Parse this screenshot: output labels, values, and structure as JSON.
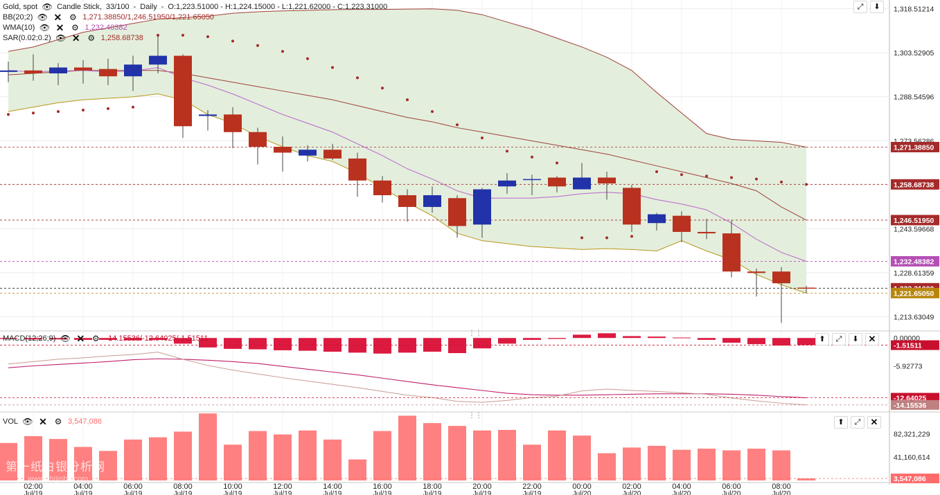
{
  "header": {
    "symbol": "Gold, spot",
    "chart_type": "Candle Stick,",
    "bar_count": "33/100",
    "timeframe": "Daily",
    "ohlc": "O:1,223.51000 - H:1,224.15000 - L:1,221.62000 - C:1,223.31000"
  },
  "indicators": {
    "bb": {
      "name": "BB(20;2)",
      "values": "1,271.38850/1,246.51950/1,221.65050",
      "color": "#a52a2a"
    },
    "wma": {
      "name": "WMA(10)",
      "values": "1,232.48382",
      "color": "#b44fb4"
    },
    "sar": {
      "name": "SAR(0.02;0.2)",
      "values": "1,258.68738",
      "color": "#a52a2a"
    },
    "macd": {
      "name": "MACD(12;26;9)",
      "values": "-14.15536/-12.64025/-1.51511",
      "color": "#b2102f"
    },
    "vol": {
      "name": "VOL",
      "values": "3,547,086",
      "color": "#ff6b6b"
    }
  },
  "chart_data": {
    "type": "candlestick",
    "y_axis_ticks": [
      "1,318.51214",
      "1,303.52905",
      "1,288.54596",
      "1,273.56286",
      "1,258.58",
      "1,243.59668",
      "1,228.61359",
      "1,213.63049"
    ],
    "y_tick_values": [
      1318.51214,
      1303.52905,
      1288.54596,
      1273.56286,
      1258.58,
      1243.59668,
      1228.61359,
      1213.63049
    ],
    "ylim": [
      1209.0,
      1321.5
    ],
    "price_labels": [
      {
        "text": "1,271.38850",
        "value": 1271.3885,
        "color": "#a52a2a"
      },
      {
        "text": "1,258.68738",
        "value": 1258.68738,
        "color": "#a52a2a"
      },
      {
        "text": "1,246.51950",
        "value": 1246.5195,
        "color": "#a52a2a"
      },
      {
        "text": "1,232.48382",
        "value": 1232.48382,
        "color": "#b44fb4"
      },
      {
        "text": "1,223.31000",
        "value": 1223.31,
        "color": "#a52a2a"
      },
      {
        "text": "1,221.65050",
        "value": 1221.6505,
        "color": "#b8860b"
      }
    ],
    "x_time_labels": [
      "02:00",
      "04:00",
      "06:00",
      "08:00",
      "10:00",
      "12:00",
      "14:00",
      "16:00",
      "18:00",
      "20:00",
      "22:00",
      "00:00",
      "02:00",
      "04:00",
      "06:00",
      "08:00"
    ],
    "x_date_labels": [
      "Jul/19",
      "Jul/19",
      "Jul/19",
      "Jul/19",
      "Jul/19",
      "Jul/19",
      "Jul/19",
      "Jul/19",
      "Jul/19",
      "Jul/19",
      "Jul/19",
      "Jul/20",
      "Jul/20",
      "Jul/20",
      "Jul/20",
      "Jul/20"
    ],
    "candles": [
      [
        1297.0,
        1300.5,
        1293.5,
        1297.5
      ],
      [
        1297.5,
        1303.0,
        1294.0,
        1296.5
      ],
      [
        1296.5,
        1300.0,
        1292.5,
        1298.5
      ],
      [
        1298.5,
        1301.0,
        1293.0,
        1297.5
      ],
      [
        1298.0,
        1301.5,
        1292.5,
        1295.5
      ],
      [
        1295.5,
        1302.5,
        1290.5,
        1299.5
      ],
      [
        1299.5,
        1309.5,
        1296.5,
        1302.5
      ],
      [
        1302.5,
        1303.0,
        1274.5,
        1278.5
      ],
      [
        1282.0,
        1284.0,
        1277.0,
        1282.5
      ],
      [
        1282.5,
        1285.0,
        1271.0,
        1276.5
      ],
      [
        1276.5,
        1278.0,
        1265.5,
        1271.5
      ],
      [
        1271.5,
        1275.0,
        1263.0,
        1269.5
      ],
      [
        1268.5,
        1272.0,
        1266.5,
        1270.5
      ],
      [
        1270.5,
        1272.5,
        1267.0,
        1267.5
      ],
      [
        1267.5,
        1269.5,
        1254.5,
        1260.0
      ],
      [
        1260.0,
        1261.5,
        1252.5,
        1255.0
      ],
      [
        1255.0,
        1257.0,
        1246.0,
        1251.0
      ],
      [
        1251.0,
        1258.0,
        1249.0,
        1255.0
      ],
      [
        1254.0,
        1255.0,
        1240.5,
        1244.5
      ],
      [
        1245.0,
        1257.5,
        1240.5,
        1257.0
      ],
      [
        1258.0,
        1262.5,
        1255.5,
        1260.0
      ],
      [
        1260.5,
        1262.0,
        1255.0,
        1260.5
      ],
      [
        1261.0,
        1261.5,
        1256.0,
        1258.0
      ],
      [
        1257.0,
        1266.0,
        1257.0,
        1261.0
      ],
      [
        1261.0,
        1263.0,
        1253.5,
        1259.0
      ],
      [
        1257.5,
        1258.5,
        1242.5,
        1245.0
      ],
      [
        1245.5,
        1249.0,
        1243.0,
        1248.5
      ],
      [
        1248.0,
        1249.5,
        1239.0,
        1242.5
      ],
      [
        1242.5,
        1247.0,
        1240.0,
        1242.0
      ],
      [
        1242.0,
        1246.5,
        1227.0,
        1229.0
      ],
      [
        1229.0,
        1230.0,
        1220.5,
        1228.5
      ],
      [
        1229.0,
        1230.5,
        1211.5,
        1225.0
      ],
      [
        1223.51,
        1224.15,
        1221.62,
        1223.31
      ]
    ],
    "bb_upper": [
      1304.0,
      1305.5,
      1308.0,
      1310.5,
      1312.0,
      1313.5,
      1315.0,
      1315.5,
      1316.0,
      1317.0,
      1317.5,
      1317.8,
      1318.0,
      1318.2,
      1318.3,
      1318.3,
      1318.4,
      1318.5,
      1318.0,
      1316.5,
      1314.0,
      1311.5,
      1308.5,
      1305.5,
      1302.0,
      1297.5,
      1290.0,
      1283.0,
      1276.0,
      1274.0,
      1273.5,
      1273.0,
      1271.3885
    ],
    "bb_mid": [
      1296.0,
      1296.5,
      1297.0,
      1297.5,
      1297.5,
      1297.5,
      1297.5,
      1296.5,
      1295.0,
      1293.5,
      1292.0,
      1290.5,
      1289.0,
      1287.5,
      1285.5,
      1283.5,
      1281.5,
      1280.0,
      1278.0,
      1276.5,
      1275.0,
      1273.5,
      1272.0,
      1270.5,
      1269.0,
      1267.0,
      1265.0,
      1263.0,
      1261.0,
      1259.0,
      1256.5,
      1251.0,
      1246.5195
    ],
    "bb_lower": [
      1283.5,
      1285.0,
      1286.5,
      1287.5,
      1288.0,
      1288.5,
      1289.5,
      1287.5,
      1282.5,
      1279.5,
      1275.0,
      1271.5,
      1268.5,
      1266.5,
      1262.5,
      1257.5,
      1252.5,
      1248.0,
      1242.0,
      1239.5,
      1238.5,
      1237.5,
      1237.0,
      1236.5,
      1236.8,
      1236.5,
      1236.0,
      1239.5,
      1236.0,
      1233.0,
      1228.0,
      1224.5,
      1221.6505
    ],
    "wma": [
      1297.5,
      1297.0,
      1297.3,
      1297.5,
      1297.0,
      1297.3,
      1298.5,
      1295.0,
      1292.5,
      1289.5,
      1286.0,
      1282.5,
      1279.5,
      1276.5,
      1272.5,
      1268.5,
      1264.0,
      1260.5,
      1256.5,
      1254.0,
      1254.0,
      1254.0,
      1254.5,
      1255.5,
      1256.0,
      1255.5,
      1253.5,
      1252.0,
      1250.0,
      1245.5,
      1240.0,
      1235.5,
      1232.48382
    ],
    "sar": [
      1282.5,
      1283.0,
      1283.5,
      1284.0,
      1284.5,
      1285.0,
      1309.5,
      1309.5,
      1309.0,
      1307.5,
      1306.0,
      1304.0,
      1301.5,
      1298.5,
      1295.0,
      1291.5,
      1287.5,
      1283.5,
      1279.0,
      1274.5,
      1270.0,
      1268.0,
      1266.0,
      1240.5,
      1240.5,
      1241.0,
      1263.0,
      1262.0,
      1261.5,
      1261.0,
      1260.5,
      1259.5,
      1258.68738
    ],
    "macd": {
      "zero_label": "0.00000",
      "ticks": [
        "0.00000",
        "-5.92773"
      ],
      "tick_values": [
        0,
        -5.92773
      ],
      "ylim": [
        -15.2,
        1.2
      ],
      "value_labels": [
        {
          "text": "-1.51511",
          "value": -1.51511,
          "color": "#c8102e"
        },
        {
          "text": "-12.64025",
          "value": -12.64025,
          "color": "#c8102e"
        },
        {
          "text": "-14.15536",
          "value": -14.15536,
          "color": "#c08080"
        }
      ],
      "histogram": [
        -0.2,
        -0.3,
        -0.3,
        -0.4,
        -0.4,
        -0.5,
        -0.4,
        -1.2,
        -2.0,
        -2.3,
        -2.4,
        -2.6,
        -2.7,
        -2.9,
        -3.1,
        -3.3,
        -3.1,
        -2.9,
        -3.2,
        -2.2,
        -1.2,
        -0.4,
        -0.2,
        0.7,
        1.0,
        0.4,
        0.3,
        0.1,
        -0.4,
        -1.0,
        -1.3,
        -1.6,
        -1.51511
      ],
      "macd_line": [
        -5.5,
        -5.0,
        -4.5,
        -4.2,
        -3.8,
        -3.5,
        -3.0,
        -4.5,
        -5.8,
        -6.8,
        -7.6,
        -8.4,
        -9.1,
        -9.8,
        -10.5,
        -11.3,
        -12.1,
        -12.6,
        -13.4,
        -13.6,
        -13.2,
        -12.6,
        -12.3,
        -11.2,
        -10.8,
        -11.1,
        -11.3,
        -11.6,
        -11.9,
        -12.7,
        -13.3,
        -13.8,
        -14.15536
      ],
      "signal_line": [
        -6.3,
        -5.9,
        -5.6,
        -5.3,
        -5.0,
        -4.6,
        -4.4,
        -4.5,
        -4.7,
        -5.0,
        -5.4,
        -6.0,
        -6.6,
        -7.2,
        -7.8,
        -8.5,
        -9.2,
        -9.9,
        -10.5,
        -11.1,
        -11.7,
        -12.0,
        -12.1,
        -12.1,
        -12.0,
        -11.9,
        -11.8,
        -11.8,
        -11.8,
        -11.9,
        -12.1,
        -12.4,
        -12.64025
      ]
    },
    "vol": {
      "ticks": [
        "82,321,229",
        "41,160,614"
      ],
      "tick_values": [
        82321229,
        41160614
      ],
      "ylim": [
        0,
        117000000
      ],
      "value_label": {
        "text": "3,547,086",
        "value": 3547086,
        "color": "#ff6b6b"
      },
      "values": [
        66000000,
        78000000,
        73000000,
        59000000,
        52000000,
        72000000,
        76000000,
        86000000,
        118000000,
        63000000,
        87000000,
        81000000,
        88000000,
        72000000,
        37000000,
        87000000,
        114000000,
        101000000,
        96000000,
        88000000,
        89000000,
        63000000,
        88000000,
        79000000,
        48000000,
        58000000,
        61000000,
        54000000,
        56000000,
        53000000,
        56000000,
        53000000,
        3547086
      ],
      "last_partial": 77000000
    }
  },
  "toolbar_icons": {
    "main": [
      "expand-icon",
      "arrow-down-icon"
    ],
    "macd": [
      "arrow-up-icon",
      "expand-icon",
      "arrow-down-icon",
      "close-icon"
    ],
    "vol": [
      "arrow-up-icon",
      "expand-icon",
      "close-icon"
    ]
  },
  "watermark": {
    "line1": "第一纸白银分析网",
    "line2": "www.zhijinba.com"
  }
}
